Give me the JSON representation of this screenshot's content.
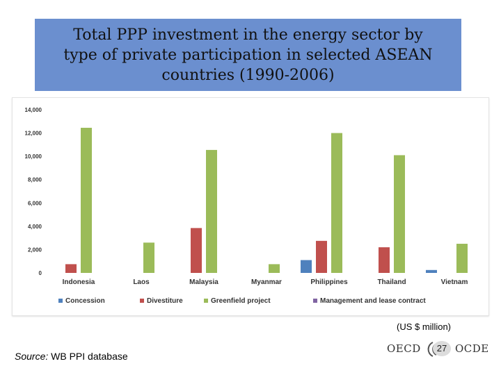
{
  "title_lines": [
    "Total PPP investment in the energy sector by",
    "type of private participation in selected ASEAN",
    "countries (1990-2006)"
  ],
  "unit_note": "(US $ million)",
  "source": {
    "label": "Source:",
    "text": " WB PPI database"
  },
  "logo": {
    "left": "OECD",
    "right": "OCDE",
    "icon": "oecd-rings-logo"
  },
  "page_number": "27",
  "colors": {
    "title_bg": "#6b8fcf",
    "Concession": "#4f81bd",
    "Divestiture": "#c0504d",
    "Greenfield project": "#9bbb59",
    "Management and lease contract": "#8064a2"
  },
  "chart_data": {
    "type": "bar",
    "categories": [
      "Indonesia",
      "Laos",
      "Malaysia",
      "Myanmar",
      "Philippines",
      "Thailand",
      "Vietnam"
    ],
    "series": [
      {
        "name": "Concession",
        "values": [
          0,
          0,
          0,
          0,
          1100,
          0,
          250
        ]
      },
      {
        "name": "Divestiture",
        "values": [
          750,
          0,
          3850,
          0,
          2750,
          2200,
          0
        ]
      },
      {
        "name": "Greenfield project",
        "values": [
          12450,
          2600,
          10550,
          750,
          12000,
          10100,
          2500
        ]
      },
      {
        "name": "Management and lease contract",
        "values": [
          0,
          0,
          0,
          0,
          0,
          0,
          0
        ]
      }
    ],
    "yticks": [
      "0",
      "2,000",
      "4,000",
      "6,000",
      "8,000",
      "10,000",
      "12,000",
      "14,000"
    ],
    "ylim": [
      0,
      14000
    ],
    "legend_position": "bottom",
    "grid": false
  }
}
